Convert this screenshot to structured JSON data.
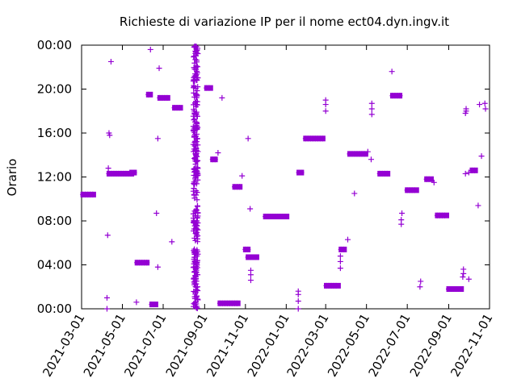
{
  "chart_data": {
    "type": "scatter",
    "title": "Richieste di variazione IP per il nome ect04.dyn.ingv.it",
    "xlabel": "",
    "ylabel": "Orario",
    "x_range": [
      "2021-03-01",
      "2022-11-01"
    ],
    "x_ticks": [
      "2021-03-01",
      "2021-05-01",
      "2021-07-01",
      "2021-09-01",
      "2021-11-01",
      "2022-01-01",
      "2022-03-01",
      "2022-05-01",
      "2022-07-01",
      "2022-09-01",
      "2022-11-01"
    ],
    "y_range": [
      "00:00",
      "24:00"
    ],
    "y_ticks": [
      "00:00",
      "04:00",
      "08:00",
      "12:00",
      "16:00",
      "20:00",
      "00:00"
    ],
    "grid": false,
    "marker": "+",
    "color": "#9400d3",
    "clusters": [
      {
        "x_start": "2021-03-03",
        "x_end": "2021-03-19",
        "y": "10:24"
      },
      {
        "x_start": "2021-04-11",
        "x_end": "2021-05-15",
        "y": "12:18"
      },
      {
        "x_start": "2021-05-15",
        "x_end": "2021-05-19",
        "y": "12:24"
      },
      {
        "x_start": "2021-05-23",
        "x_end": "2021-06-07",
        "y": "04:12"
      },
      {
        "x_start": "2021-06-09",
        "x_end": "2021-06-12",
        "y": "19:30"
      },
      {
        "x_start": "2021-06-14",
        "x_end": "2021-06-20",
        "y": "00:24"
      },
      {
        "x_start": "2021-06-26",
        "x_end": "2021-07-08",
        "y": "19:12"
      },
      {
        "x_start": "2021-07-18",
        "x_end": "2021-07-27",
        "y": "18:18"
      },
      {
        "x_start": "2021-09-04",
        "x_end": "2021-09-10",
        "y": "20:06"
      },
      {
        "x_start": "2021-09-13",
        "x_end": "2021-09-17",
        "y": "13:36"
      },
      {
        "x_start": "2021-09-24",
        "x_end": "2021-10-21",
        "y": "00:30"
      },
      {
        "x_start": "2021-10-16",
        "x_end": "2021-10-24",
        "y": "11:06"
      },
      {
        "x_start": "2021-11-01",
        "x_end": "2021-11-05",
        "y": "05:24"
      },
      {
        "x_start": "2021-11-05",
        "x_end": "2021-11-18",
        "y": "04:42"
      },
      {
        "x_start": "2021-12-01",
        "x_end": "2022-01-02",
        "y": "08:24"
      },
      {
        "x_start": "2022-01-20",
        "x_end": "2022-01-24",
        "y": "12:24"
      },
      {
        "x_start": "2022-01-30",
        "x_end": "2022-02-25",
        "y": "15:30"
      },
      {
        "x_start": "2022-03-02",
        "x_end": "2022-03-20",
        "y": "02:06"
      },
      {
        "x_start": "2022-03-24",
        "x_end": "2022-03-29",
        "y": "05:24"
      },
      {
        "x_start": "2022-04-06",
        "x_end": "2022-04-30",
        "y": "14:06"
      },
      {
        "x_start": "2022-05-21",
        "x_end": "2022-06-02",
        "y": "12:18"
      },
      {
        "x_start": "2022-06-09",
        "x_end": "2022-06-20",
        "y": "19:24"
      },
      {
        "x_start": "2022-07-01",
        "x_end": "2022-07-15",
        "y": "10:48"
      },
      {
        "x_start": "2022-07-30",
        "x_end": "2022-08-06",
        "y": "11:48"
      },
      {
        "x_start": "2022-08-15",
        "x_end": "2022-08-29",
        "y": "08:30"
      },
      {
        "x_start": "2022-09-01",
        "x_end": "2022-09-20",
        "y": "01:48"
      },
      {
        "x_start": "2022-10-06",
        "x_end": "2022-10-11",
        "y": "12:36"
      }
    ],
    "points": [
      {
        "x": "2021-04-08",
        "y": "01:00"
      },
      {
        "x": "2021-04-08",
        "y": "00:00"
      },
      {
        "x": "2021-04-09",
        "y": "06:42"
      },
      {
        "x": "2021-04-10",
        "y": "12:48"
      },
      {
        "x": "2021-04-11",
        "y": "16:00"
      },
      {
        "x": "2021-04-12",
        "y": "15:48"
      },
      {
        "x": "2021-04-14",
        "y": "22:30"
      },
      {
        "x": "2021-05-22",
        "y": "00:36"
      },
      {
        "x": "2021-06-12",
        "y": "23:36"
      },
      {
        "x": "2021-06-21",
        "y": "08:42"
      },
      {
        "x": "2021-06-23",
        "y": "03:48"
      },
      {
        "x": "2021-06-23",
        "y": "15:30"
      },
      {
        "x": "2021-06-25",
        "y": "21:54"
      },
      {
        "x": "2021-07-14",
        "y": "06:06"
      },
      {
        "x": "2021-09-21",
        "y": "14:12"
      },
      {
        "x": "2021-09-27",
        "y": "19:12"
      },
      {
        "x": "2021-10-27",
        "y": "12:06"
      },
      {
        "x": "2021-11-05",
        "y": "15:30"
      },
      {
        "x": "2021-11-08",
        "y": "09:06"
      },
      {
        "x": "2021-11-09",
        "y": "02:36"
      },
      {
        "x": "2021-11-09",
        "y": "03:06"
      },
      {
        "x": "2021-11-09",
        "y": "03:30"
      },
      {
        "x": "2022-01-19",
        "y": "00:00"
      },
      {
        "x": "2022-01-19",
        "y": "00:42"
      },
      {
        "x": "2022-01-19",
        "y": "01:18"
      },
      {
        "x": "2022-01-19",
        "y": "01:36"
      },
      {
        "x": "2022-03-01",
        "y": "18:00"
      },
      {
        "x": "2022-03-01",
        "y": "18:36"
      },
      {
        "x": "2022-03-01",
        "y": "19:00"
      },
      {
        "x": "2022-03-23",
        "y": "03:42"
      },
      {
        "x": "2022-03-23",
        "y": "04:18"
      },
      {
        "x": "2022-03-23",
        "y": "04:48"
      },
      {
        "x": "2022-04-03",
        "y": "06:18"
      },
      {
        "x": "2022-04-13",
        "y": "10:30"
      },
      {
        "x": "2022-05-03",
        "y": "14:18"
      },
      {
        "x": "2022-05-08",
        "y": "13:36"
      },
      {
        "x": "2022-05-09",
        "y": "17:42"
      },
      {
        "x": "2022-05-09",
        "y": "18:12"
      },
      {
        "x": "2022-05-09",
        "y": "18:42"
      },
      {
        "x": "2022-06-08",
        "y": "21:36"
      },
      {
        "x": "2022-06-22",
        "y": "07:42"
      },
      {
        "x": "2022-06-22",
        "y": "08:06"
      },
      {
        "x": "2022-06-23",
        "y": "08:42"
      },
      {
        "x": "2022-07-20",
        "y": "02:00"
      },
      {
        "x": "2022-07-21",
        "y": "02:30"
      },
      {
        "x": "2022-08-10",
        "y": "11:30"
      },
      {
        "x": "2022-09-22",
        "y": "02:54"
      },
      {
        "x": "2022-09-23",
        "y": "03:12"
      },
      {
        "x": "2022-09-23",
        "y": "03:36"
      },
      {
        "x": "2022-09-26",
        "y": "12:18"
      },
      {
        "x": "2022-09-26",
        "y": "17:48"
      },
      {
        "x": "2022-09-27",
        "y": "18:12"
      },
      {
        "x": "2022-09-27",
        "y": "18:00"
      },
      {
        "x": "2022-10-01",
        "y": "12:24"
      },
      {
        "x": "2022-10-01",
        "y": "02:42"
      },
      {
        "x": "2022-10-15",
        "y": "09:24"
      },
      {
        "x": "2022-10-17",
        "y": "18:36"
      },
      {
        "x": "2022-10-20",
        "y": "13:54"
      },
      {
        "x": "2022-10-25",
        "y": "18:42"
      },
      {
        "x": "2022-10-26",
        "y": "18:12"
      }
    ],
    "dense_band": {
      "x_start": "2021-08-15",
      "x_end": "2021-08-22",
      "y_range": [
        "00:00",
        "24:00"
      ],
      "description_count": 320
    }
  }
}
